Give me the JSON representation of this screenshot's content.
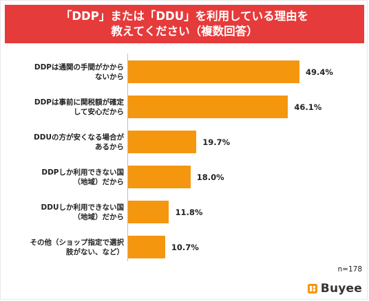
{
  "chart_data": {
    "type": "bar",
    "orientation": "horizontal",
    "title_lines": [
      "「DDP」または「DDU」を利用している理由を",
      "教えてください（複数回答）"
    ],
    "categories": [
      [
        "DDPは通関の手間がかから",
        "ないから"
      ],
      [
        "DDPは事前に関税額が確定",
        "して安心だから"
      ],
      [
        "DDUの方が安くなる場合が",
        "あるから"
      ],
      [
        "DDPしか利用できない国",
        "（地域）だから"
      ],
      [
        "DDUしか利用できない国",
        "（地域）だから"
      ],
      [
        "その他（ショップ指定で選択",
        "肢がない、など）"
      ]
    ],
    "values": [
      49.4,
      46.1,
      19.7,
      18.0,
      11.8,
      10.7
    ],
    "value_labels": [
      "49.4%",
      "46.1%",
      "19.7%",
      "18.0%",
      "11.8%",
      "10.7%"
    ],
    "xlim": [
      0,
      50
    ],
    "grid": false,
    "bar_color": "#f5960f",
    "note": "n=178"
  },
  "brand": {
    "logo_text": "Buyee",
    "logo_icon": "buyee-box-icon",
    "accent": "#f5960f"
  },
  "colors": {
    "title_bg": "#e63b3b",
    "title_text": "#ffffff"
  }
}
